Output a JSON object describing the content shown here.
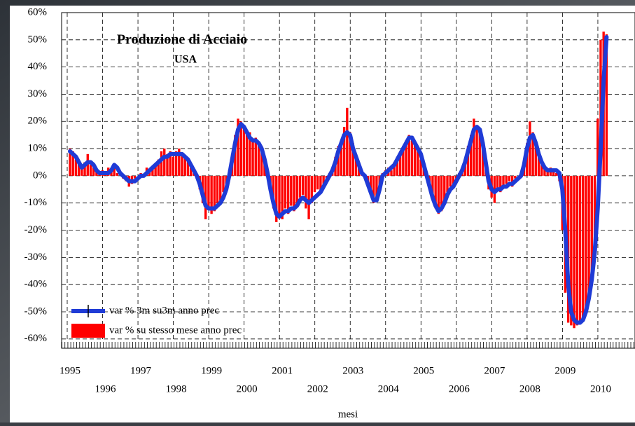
{
  "chart_data": {
    "type": "combo",
    "title": "Produzione di Acciaio",
    "subtitle": "USA",
    "x_label": "mesi",
    "categories": [
      "1995",
      null,
      null,
      null,
      null,
      null,
      null,
      null,
      null,
      null,
      null,
      null,
      "1996",
      null,
      null,
      null,
      null,
      null,
      null,
      null,
      null,
      null,
      null,
      null,
      "1997",
      null,
      null,
      null,
      null,
      null,
      null,
      null,
      null,
      null,
      null,
      null,
      "1998",
      null,
      null,
      null,
      null,
      null,
      null,
      null,
      null,
      null,
      null,
      null,
      "1999",
      null,
      null,
      null,
      null,
      null,
      null,
      null,
      null,
      null,
      null,
      null,
      "2000",
      null,
      null,
      null,
      null,
      null,
      null,
      null,
      null,
      null,
      null,
      null,
      "2001",
      null,
      null,
      null,
      null,
      null,
      null,
      null,
      null,
      null,
      null,
      null,
      "2002",
      null,
      null,
      null,
      null,
      null,
      null,
      null,
      null,
      null,
      null,
      null,
      "2003",
      null,
      null,
      null,
      null,
      null,
      null,
      null,
      null,
      null,
      null,
      null,
      "2004",
      null,
      null,
      null,
      null,
      null,
      null,
      null,
      null,
      null,
      null,
      null,
      "2005",
      null,
      null,
      null,
      null,
      null,
      null,
      null,
      null,
      null,
      null,
      null,
      "2006",
      null,
      null,
      null,
      null,
      null,
      null,
      null,
      null,
      null,
      null,
      null,
      "2007",
      null,
      null,
      null,
      null,
      null,
      null,
      null,
      null,
      null,
      null,
      null,
      "2008",
      null,
      null,
      null,
      null,
      null,
      null,
      null,
      null,
      null,
      null,
      null,
      "2009",
      null,
      null,
      null,
      null,
      null,
      null,
      null,
      null,
      null,
      null,
      null,
      "2010",
      null,
      null
    ],
    "series": [
      {
        "name": "var % 3m su3m  anno prec",
        "type": "line",
        "color": "#1f3bd6",
        "values": [
          9,
          8,
          7,
          5,
          3,
          4,
          5,
          5,
          4,
          2,
          1,
          1,
          1,
          1,
          2,
          4,
          3,
          1,
          0,
          -1,
          -2,
          -2,
          -2,
          -1,
          0,
          0,
          1,
          2,
          3,
          4,
          5,
          6,
          7,
          7,
          8,
          8,
          8,
          8,
          8,
          7,
          6,
          4,
          2,
          0,
          -3,
          -7,
          -11,
          -12,
          -12,
          -12,
          -11,
          -10,
          -8,
          -5,
          0,
          6,
          12,
          17,
          19,
          18,
          16,
          14,
          13,
          13,
          12,
          10,
          6,
          1,
          -5,
          -10,
          -14,
          -15,
          -14,
          -13,
          -13,
          -12,
          -12,
          -11,
          -9,
          -8,
          -9,
          -10,
          -9,
          -8,
          -7,
          -6,
          -4,
          -2,
          0,
          2,
          5,
          9,
          12,
          15,
          16,
          15,
          10,
          7,
          4,
          1,
          0,
          -3,
          -6,
          -9,
          -9,
          -5,
          0,
          1,
          2,
          3,
          4,
          6,
          8,
          10,
          12,
          14,
          14,
          12,
          10,
          8,
          4,
          0,
          -4,
          -8,
          -11,
          -13,
          -12,
          -10,
          -7,
          -5,
          -4,
          -2,
          0,
          2,
          5,
          9,
          13,
          17,
          18,
          17,
          12,
          5,
          -2,
          -5,
          -6,
          -5,
          -5,
          -4,
          -4,
          -3,
          -3,
          -2,
          -1,
          0,
          4,
          10,
          14,
          15,
          12,
          8,
          5,
          3,
          2,
          2,
          2,
          2,
          1,
          -5,
          -20,
          -40,
          -50,
          -53,
          -54,
          -54,
          -53,
          -50,
          -45,
          -38,
          -28,
          -12,
          10,
          35,
          51
        ]
      },
      {
        "name": "var %  su stesso mese  anno prec",
        "type": "bar",
        "color": "#ff0000",
        "values": [
          10,
          9,
          6,
          5,
          3,
          5,
          8,
          4,
          3,
          2,
          1,
          2,
          1,
          3,
          2,
          3,
          1,
          0,
          -1,
          -2,
          -4,
          -3,
          -1,
          0,
          1,
          0,
          3,
          2,
          3,
          4,
          6,
          9,
          10,
          8,
          9,
          7,
          9,
          10,
          8,
          7,
          5,
          3,
          1,
          -1,
          -5,
          -10,
          -16,
          -12,
          -14,
          -13,
          -10,
          -9,
          -6,
          -3,
          2,
          8,
          15,
          21,
          20,
          17,
          15,
          16,
          13,
          14,
          12,
          11,
          7,
          2,
          -6,
          -12,
          -17,
          -15,
          -16,
          -12,
          -14,
          -11,
          -13,
          -10,
          -8,
          -7,
          -12,
          -16,
          -10,
          -6,
          -5,
          -6,
          -3,
          -1,
          1,
          3,
          7,
          11,
          13,
          18,
          25,
          16,
          12,
          8,
          5,
          2,
          0,
          -4,
          -7,
          -10,
          -9,
          -4,
          1,
          2,
          3,
          2,
          5,
          7,
          9,
          11,
          13,
          15,
          13,
          12,
          9,
          6,
          3,
          -1,
          -5,
          -9,
          -12,
          -14,
          -13,
          -9,
          -6,
          -4,
          -3,
          -1,
          1,
          3,
          6,
          11,
          15,
          21,
          18,
          16,
          10,
          3,
          -5,
          -8,
          -10,
          -5,
          -6,
          -4,
          -3,
          -2,
          -4,
          -1,
          0,
          1,
          5,
          12,
          20,
          16,
          11,
          7,
          4,
          3,
          2,
          3,
          2,
          1,
          -2,
          -20,
          -43,
          -54,
          -55,
          -56,
          -55,
          -54,
          -53,
          -50,
          -44,
          -36,
          -25,
          21,
          50,
          53,
          52
        ]
      }
    ],
    "ylim": [
      -63.4,
      60
    ],
    "yticks": [
      {
        "value": -60,
        "label": "-60%"
      },
      {
        "value": -50,
        "label": "-50%"
      },
      {
        "value": -40,
        "label": "-40%"
      },
      {
        "value": -30,
        "label": "-30%"
      },
      {
        "value": -20,
        "label": "-20%"
      },
      {
        "value": -10,
        "label": "-10%"
      },
      {
        "value": 0,
        "label": "0%"
      },
      {
        "value": 10,
        "label": "10%"
      },
      {
        "value": 20,
        "label": "20%"
      },
      {
        "value": 30,
        "label": "30%"
      },
      {
        "value": 40,
        "label": "40%"
      },
      {
        "value": 50,
        "label": "50%"
      },
      {
        "value": 60,
        "label": "60%"
      }
    ],
    "grid": true,
    "legend": "lower left"
  }
}
